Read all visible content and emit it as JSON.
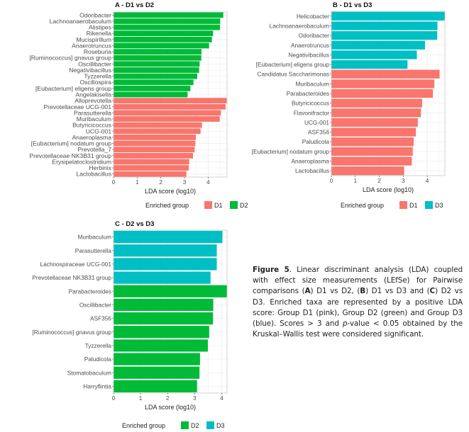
{
  "colors": {
    "D1": "#F8766D",
    "D2": "#00BA38",
    "D3": "#00BFC4"
  },
  "chart_data": [
    {
      "type": "bar",
      "orientation": "horizontal",
      "title": "A - D1 vs D2",
      "xlabel": "LDA score (log10)",
      "xlim": [
        0,
        4.8
      ],
      "xticks": [
        "0",
        "1",
        "2",
        "3",
        "4"
      ],
      "grid": true,
      "legend": {
        "title": "Enriched group",
        "entries": [
          "D1",
          "D2"
        ],
        "placement": "bottom"
      },
      "categories": [
        "Odoribacter",
        "Lachnoanaerobaculum",
        "Alistipes",
        "Rikenella",
        "Mucispirillum",
        "Anaerotruncus",
        "Roseburia",
        "[Ruminococcus] gnavus group",
        "Oscillibacter",
        "Negativibacillus",
        "Tyzzerella",
        "Oscillospira",
        "[Eubacterium] eligens group",
        "Angelakisella",
        "Alloprevotella",
        "Prevotellaceae UCG-001",
        "Parasutterella",
        "Muribaculum",
        "Butyricicoccus",
        "UCG-001",
        "Anaeroplasma",
        "[Eubacterium] nodatum group",
        "Prevotella_7",
        "Prevotellaceae NK3B31 group",
        "Erysipelatoclostridium",
        "Herbinix",
        "Lactobacillus"
      ],
      "values": [
        4.64,
        4.51,
        4.5,
        4.21,
        4.16,
        4.04,
        3.72,
        3.71,
        3.64,
        3.62,
        3.54,
        3.38,
        3.25,
        3.13,
        4.79,
        4.74,
        4.54,
        4.49,
        3.74,
        3.68,
        3.48,
        3.46,
        3.43,
        3.36,
        3.2,
        3.18,
        3.08
      ],
      "groups": [
        "D2",
        "D2",
        "D2",
        "D2",
        "D2",
        "D2",
        "D2",
        "D2",
        "D2",
        "D2",
        "D2",
        "D2",
        "D2",
        "D2",
        "D1",
        "D1",
        "D1",
        "D1",
        "D1",
        "D1",
        "D1",
        "D1",
        "D1",
        "D1",
        "D1",
        "D1",
        "D1"
      ]
    },
    {
      "type": "bar",
      "orientation": "horizontal",
      "title": "B - D1 vs D3",
      "xlabel": "LDA score (log10)",
      "xlim": [
        0,
        4.74
      ],
      "xticks": [
        "0",
        "1",
        "2",
        "3",
        "4"
      ],
      "grid": true,
      "legend": {
        "title": "Enriched group",
        "entries": [
          "D1",
          "D3"
        ],
        "placement": "bottom"
      },
      "categories": [
        "Helicobacter",
        "Lachnoanaerobaculum",
        "Odoribacter",
        "Anaerotruncus",
        "Negativibacillus",
        "[Eubacterium] eligens group",
        "Candidatus Saccharimonas",
        "Muribaculum",
        "Parabacteroides",
        "Butyricicoccus",
        "Flavonifractor",
        "UCG-001",
        "ASF356",
        "Paludicola",
        "[Eubacterium] nodatum group",
        "Anaeroplasma",
        "Lactobacillus"
      ],
      "values": [
        4.74,
        4.43,
        4.42,
        3.91,
        3.57,
        3.18,
        4.52,
        4.3,
        4.24,
        3.79,
        3.74,
        3.61,
        3.53,
        3.44,
        3.4,
        3.36,
        3.04
      ],
      "groups": [
        "D3",
        "D3",
        "D3",
        "D3",
        "D3",
        "D3",
        "D1",
        "D1",
        "D1",
        "D1",
        "D1",
        "D1",
        "D1",
        "D1",
        "D1",
        "D1",
        "D1"
      ]
    },
    {
      "type": "bar",
      "orientation": "horizontal",
      "title": "C - D2 vs D3",
      "xlabel": "LDA score (log10)",
      "xlim": [
        0,
        4.2
      ],
      "xticks": [
        "0",
        "1",
        "2",
        "3",
        "4"
      ],
      "grid": true,
      "legend": {
        "title": "Enriched group",
        "entries": [
          "D2",
          "D3"
        ],
        "placement": "bottom"
      },
      "categories": [
        "Muribaculum",
        "Parasutterella",
        "Lachnospiraceae UCG-001",
        "Prevotellaceae NK3B31 group",
        "Parabacteroides",
        "Oscillibacter",
        "ASF356",
        "[Ruminococcus] gnavus group",
        "Tyzzerella",
        "Paludicola",
        "Stomatobaculum",
        "Harryflintia"
      ],
      "values": [
        4.03,
        3.82,
        3.82,
        3.59,
        4.2,
        3.69,
        3.68,
        3.54,
        3.49,
        3.2,
        3.18,
        3.09
      ],
      "groups": [
        "D3",
        "D3",
        "D3",
        "D3",
        "D2",
        "D2",
        "D2",
        "D2",
        "D2",
        "D2",
        "D2",
        "D2"
      ]
    }
  ],
  "caption": {
    "label": "Figure 5",
    "t1": ". Linear discriminant analysis (LDA) coupled with effect size measurements (LEfSe) for Pairwise comparisons (",
    "a": "A",
    "t2": ") D1 vs D2, (",
    "b": "B",
    "t3": ") D1 vs D3 and (",
    "c": "C",
    "t4": ") D2 vs D3. Enriched taxa are represented by a positive LDA score: Group D1 (pink), Group D2 (green) and Group D3 (blue). Scores > 3 and ",
    "p": "p",
    "t5": "-value < 0.05 obtained by the Kruskal–Wallis test were considered significant."
  }
}
